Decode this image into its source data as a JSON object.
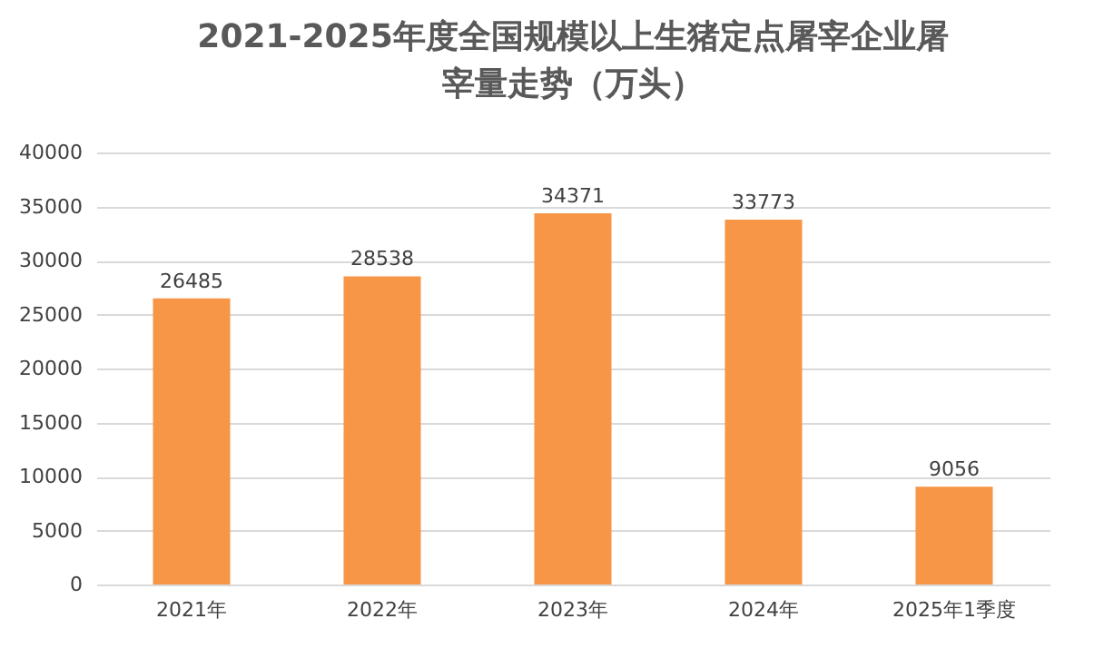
{
  "chart_data": {
    "type": "bar",
    "title": "2021-2025年度全国规模以上生猪定点屠宰企业屠宰量走势（万头）",
    "categories": [
      "2021年",
      "2022年",
      "2023年",
      "2024年",
      "2025年1季度"
    ],
    "values": [
      26485,
      28538,
      34371,
      33773,
      9056
    ],
    "color": "#f79646",
    "ylim": [
      0,
      40000
    ],
    "yticks": [
      0,
      5000,
      10000,
      15000,
      20000,
      25000,
      30000,
      35000,
      40000
    ],
    "grid": "y",
    "data_labels": true
  }
}
